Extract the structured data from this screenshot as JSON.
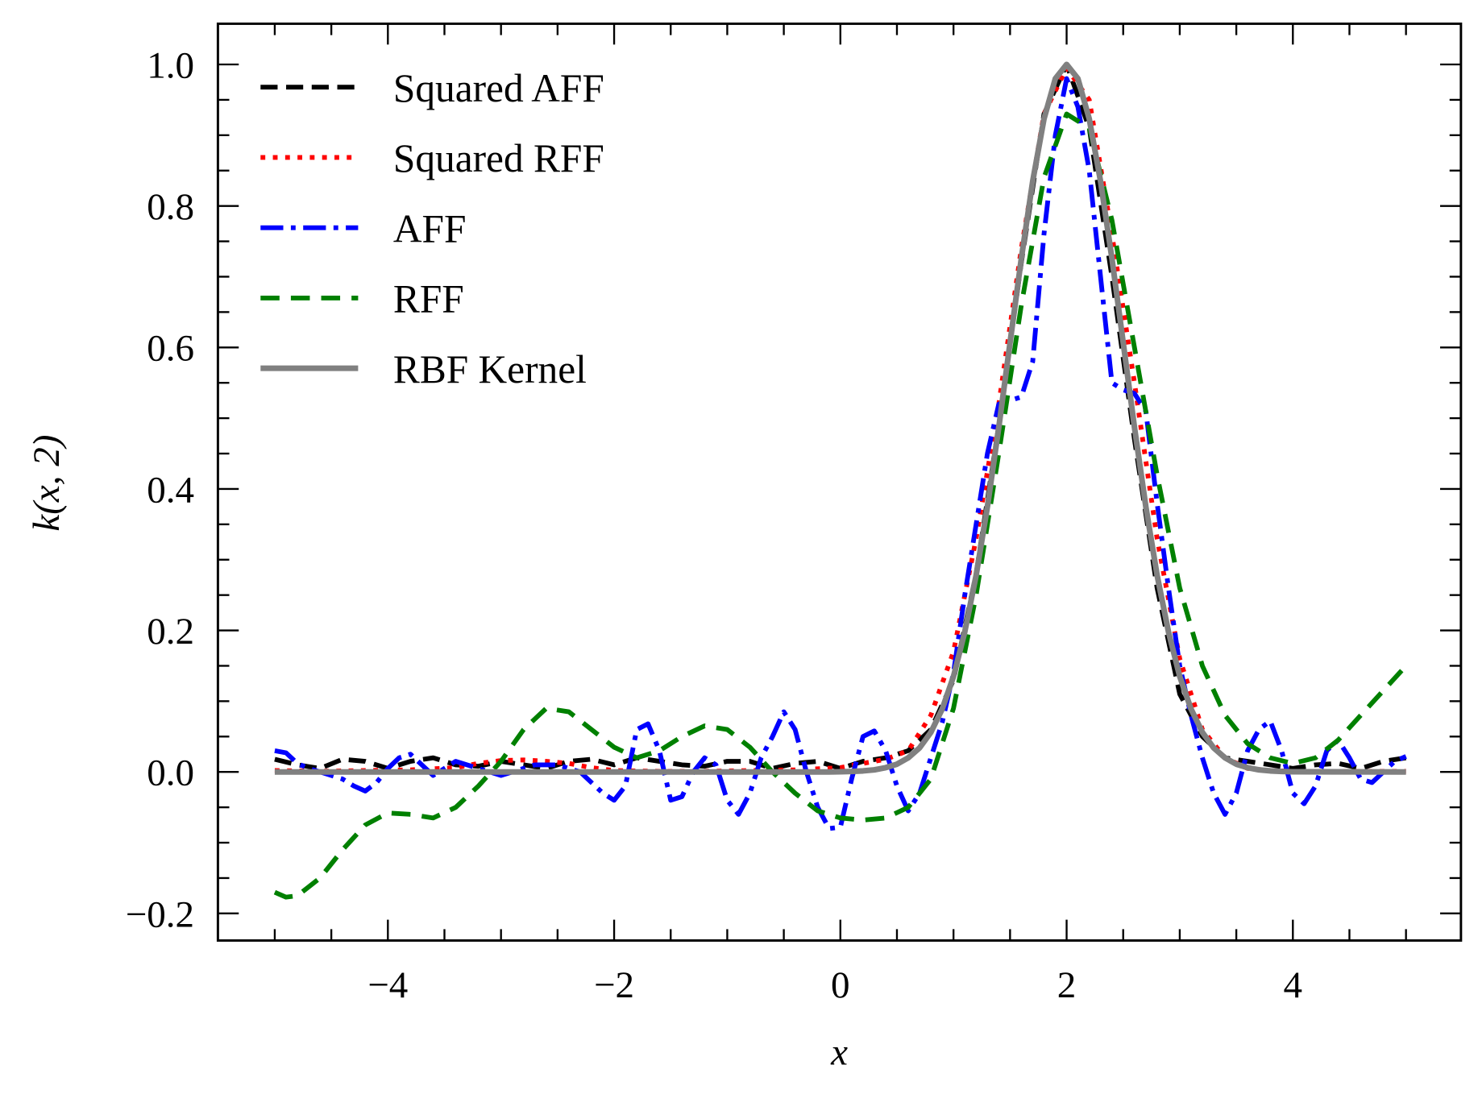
{
  "chart_data": {
    "type": "line",
    "title": "",
    "xlabel": "x",
    "ylabel": "k(x, 2)",
    "xlim": [
      -5.5,
      5.5
    ],
    "ylim": [
      -0.24,
      1.055
    ],
    "xticks": [
      -4,
      -2,
      0,
      2,
      4
    ],
    "xtick_labels": [
      "−4",
      "−2",
      "0",
      "2",
      "4"
    ],
    "yticks": [
      -0.2,
      0.0,
      0.2,
      0.4,
      0.6,
      0.8,
      1.0
    ],
    "ytick_labels": [
      "−0.2",
      "0.0",
      "0.2",
      "0.4",
      "0.6",
      "0.8",
      "1.0"
    ],
    "grid": false,
    "legend_position": "top-left",
    "series": [
      {
        "name": "Squared AFF",
        "color": "#000000",
        "style": "dashed",
        "x": [
          -5,
          -4.8,
          -4.6,
          -4.4,
          -4.2,
          -4,
          -3.8,
          -3.6,
          -3.4,
          -3.2,
          -3,
          -2.8,
          -2.6,
          -2.4,
          -2.2,
          -2,
          -1.8,
          -1.6,
          -1.4,
          -1.2,
          -1,
          -0.8,
          -0.6,
          -0.4,
          -0.2,
          0,
          0.2,
          0.4,
          0.6,
          0.8,
          1,
          1.2,
          1.4,
          1.6,
          1.8,
          2,
          2.2,
          2.4,
          2.6,
          2.8,
          3,
          3.2,
          3.4,
          3.6,
          3.8,
          4,
          4.2,
          4.4,
          4.6,
          4.8,
          5
        ],
        "y": [
          0.018,
          0.01,
          0.005,
          0.018,
          0.015,
          0.005,
          0.015,
          0.02,
          0.01,
          0.008,
          0.015,
          0.01,
          0.005,
          0.015,
          0.018,
          0.01,
          0.02,
          0.015,
          0.01,
          0.008,
          0.015,
          0.015,
          0.005,
          0.012,
          0.015,
          0.005,
          0.015,
          0.02,
          0.03,
          0.06,
          0.13,
          0.28,
          0.49,
          0.72,
          0.93,
          1.0,
          0.91,
          0.7,
          0.47,
          0.26,
          0.11,
          0.05,
          0.02,
          0.015,
          0.01,
          0.005,
          0.01,
          0.012,
          0.005,
          0.015,
          0.02
        ]
      },
      {
        "name": "Squared RFF",
        "color": "#ff0000",
        "style": "dotted",
        "x": [
          -5,
          -4.6,
          -4.2,
          -3.8,
          -3.4,
          -3.2,
          -3,
          -2.8,
          -2.6,
          -2.4,
          -2.2,
          -2,
          -1.6,
          -1.2,
          -0.8,
          -0.4,
          0,
          0.2,
          0.4,
          0.6,
          0.8,
          1,
          1.2,
          1.4,
          1.6,
          1.8,
          2,
          2.2,
          2.4,
          2.6,
          2.8,
          3,
          3.2,
          3.4,
          3.6,
          3.8,
          4,
          4.4,
          4.8,
          5
        ],
        "y": [
          0.002,
          0.001,
          0.002,
          0.003,
          0.006,
          0.012,
          0.016,
          0.017,
          0.015,
          0.012,
          0.006,
          0.002,
          0.001,
          0.001,
          0.002,
          0.003,
          0.006,
          0.012,
          0.018,
          0.03,
          0.08,
          0.17,
          0.33,
          0.52,
          0.74,
          0.93,
          0.995,
          0.95,
          0.76,
          0.55,
          0.33,
          0.16,
          0.06,
          0.02,
          0.005,
          0.002,
          0.001,
          0.001,
          0.001,
          0.001
        ]
      },
      {
        "name": "AFF",
        "color": "#0000ff",
        "style": "dashdot",
        "x": [
          -5,
          -4.9,
          -4.8,
          -4.7,
          -4.6,
          -4.5,
          -4.4,
          -4.3,
          -4.2,
          -4.1,
          -4,
          -3.9,
          -3.8,
          -3.7,
          -3.6,
          -3.5,
          -3.4,
          -3.3,
          -3.2,
          -3.1,
          -3,
          -2.9,
          -2.8,
          -2.7,
          -2.6,
          -2.5,
          -2.4,
          -2.3,
          -2.2,
          -2.1,
          -2,
          -1.9,
          -1.8,
          -1.7,
          -1.6,
          -1.5,
          -1.4,
          -1.3,
          -1.2,
          -1.1,
          -1,
          -0.9,
          -0.8,
          -0.7,
          -0.6,
          -0.5,
          -0.4,
          -0.3,
          -0.2,
          -0.1,
          0,
          0.1,
          0.2,
          0.3,
          0.4,
          0.5,
          0.6,
          0.7,
          0.8,
          0.9,
          1,
          1.1,
          1.2,
          1.3,
          1.4,
          1.5,
          1.6,
          1.7,
          1.8,
          1.9,
          2,
          2.1,
          2.2,
          2.3,
          2.4,
          2.5,
          2.6,
          2.7,
          2.8,
          2.9,
          3,
          3.1,
          3.2,
          3.3,
          3.4,
          3.5,
          3.6,
          3.7,
          3.8,
          3.9,
          4,
          4.1,
          4.2,
          4.3,
          4.4,
          4.5,
          4.6,
          4.7,
          4.8,
          4.9,
          5
        ],
        "y": [
          0.03,
          0.027,
          0.012,
          0.005,
          0.0,
          -0.005,
          -0.01,
          -0.02,
          -0.027,
          -0.015,
          0.005,
          0.02,
          0.025,
          0.01,
          -0.005,
          0.005,
          0.015,
          0.01,
          0.005,
          0.0,
          -0.005,
          0.0,
          0.005,
          0.01,
          0.01,
          0.01,
          0.005,
          0.0,
          -0.015,
          -0.03,
          -0.04,
          -0.02,
          0.06,
          0.068,
          0.03,
          -0.04,
          -0.035,
          0.0,
          0.02,
          0.01,
          -0.04,
          -0.06,
          -0.03,
          0.02,
          0.05,
          0.085,
          0.06,
          0.0,
          -0.05,
          -0.08,
          -0.078,
          -0.01,
          0.05,
          0.058,
          0.03,
          -0.02,
          -0.055,
          -0.03,
          0.02,
          0.07,
          0.14,
          0.25,
          0.35,
          0.45,
          0.52,
          0.525,
          0.53,
          0.58,
          0.76,
          0.9,
          0.98,
          0.94,
          0.85,
          0.7,
          0.55,
          0.54,
          0.535,
          0.51,
          0.38,
          0.26,
          0.15,
          0.08,
          0.02,
          -0.03,
          -0.06,
          -0.03,
          0.03,
          0.06,
          0.072,
          0.03,
          -0.03,
          -0.045,
          -0.02,
          0.03,
          0.045,
          0.02,
          -0.01,
          -0.015,
          0.0,
          0.015,
          0.022
        ]
      },
      {
        "name": "RFF",
        "color": "#008000",
        "style": "dashed",
        "x": [
          -5,
          -4.9,
          -4.8,
          -4.6,
          -4.4,
          -4.2,
          -4,
          -3.8,
          -3.6,
          -3.4,
          -3.2,
          -3,
          -2.8,
          -2.6,
          -2.4,
          -2.2,
          -2,
          -1.8,
          -1.6,
          -1.4,
          -1.2,
          -1,
          -0.8,
          -0.6,
          -0.4,
          -0.2,
          0,
          0.2,
          0.4,
          0.6,
          0.8,
          1,
          1.2,
          1.4,
          1.6,
          1.8,
          2,
          2.2,
          2.4,
          2.6,
          2.8,
          3,
          3.2,
          3.4,
          3.6,
          3.8,
          4,
          4.2,
          4.4,
          4.6,
          4.8,
          5
        ],
        "y": [
          -0.17,
          -0.177,
          -0.175,
          -0.15,
          -0.11,
          -0.075,
          -0.058,
          -0.06,
          -0.065,
          -0.05,
          -0.02,
          0.015,
          0.06,
          0.09,
          0.085,
          0.06,
          0.035,
          0.02,
          0.03,
          0.05,
          0.065,
          0.06,
          0.035,
          0.0,
          -0.03,
          -0.055,
          -0.065,
          -0.068,
          -0.065,
          -0.05,
          -0.01,
          0.09,
          0.25,
          0.45,
          0.66,
          0.84,
          0.93,
          0.91,
          0.78,
          0.6,
          0.42,
          0.26,
          0.15,
          0.08,
          0.04,
          0.02,
          0.012,
          0.02,
          0.045,
          0.08,
          0.115,
          0.15
        ]
      },
      {
        "name": "RBF Kernel",
        "color": "#808080",
        "style": "solid",
        "x": [
          -5,
          -1,
          -0.9,
          -0.8,
          -0.7,
          -0.6,
          -0.5,
          -0.4,
          -0.3,
          -0.2,
          -0.1,
          0,
          0.1,
          0.2,
          0.3,
          0.4,
          0.5,
          0.6,
          0.7,
          0.8,
          0.9,
          1,
          1.1,
          1.2,
          1.3,
          1.4,
          1.5,
          1.6,
          1.7,
          1.8,
          1.9,
          2,
          2.1,
          2.2,
          2.3,
          2.4,
          2.5,
          2.6,
          2.7,
          2.8,
          2.9,
          3,
          3.1,
          3.2,
          3.3,
          3.4,
          3.5,
          3.6,
          3.7,
          3.8,
          3.9,
          4,
          5
        ],
        "y": [
          0,
          0,
          0,
          0,
          0,
          0,
          0,
          0,
          0,
          0,
          0,
          0.0003,
          0.0007,
          0.0015,
          0.003,
          0.006,
          0.011,
          0.02,
          0.034,
          0.056,
          0.089,
          0.135,
          0.198,
          0.278,
          0.375,
          0.487,
          0.607,
          0.726,
          0.835,
          0.923,
          0.98,
          1.0,
          0.98,
          0.923,
          0.835,
          0.726,
          0.607,
          0.487,
          0.375,
          0.278,
          0.198,
          0.135,
          0.089,
          0.056,
          0.034,
          0.02,
          0.011,
          0.006,
          0.003,
          0.0015,
          0.0007,
          0.0003,
          0
        ]
      }
    ]
  }
}
